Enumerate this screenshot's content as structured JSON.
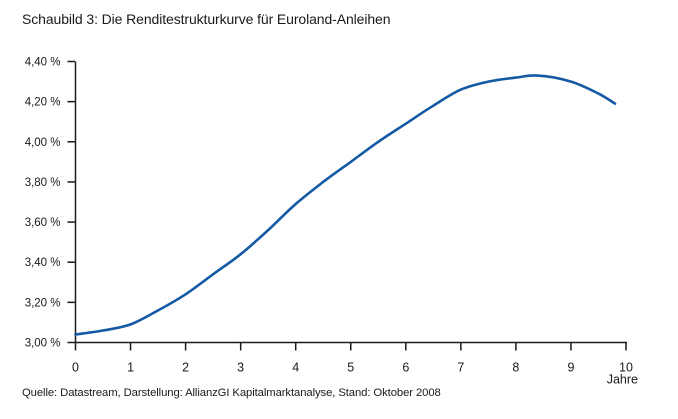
{
  "title": "Schaubild 3: Die Renditestrukturkurve für Euroland-Anleihen",
  "source": "Quelle: Datastream, Darstellung: AllianzGI Kapitalmarktanalyse, Stand: Oktober 2008",
  "colors": {
    "curve": "#1459a4",
    "axis": "#1a1a1a",
    "text": "#1a1a1a",
    "background": "#ffffff"
  },
  "chart_data": {
    "type": "line",
    "title": "Schaubild 3: Die Renditestrukturkurve für Euroland-Anleihen",
    "xlabel": "Jahre",
    "ylabel": "",
    "xlim": [
      0,
      10
    ],
    "ylim": [
      3.0,
      4.4
    ],
    "grid": false,
    "legend": "none",
    "y_unit": "%",
    "x_ticks": {
      "values": [
        0,
        1,
        2,
        3,
        4,
        5,
        6,
        7,
        8,
        9,
        10
      ],
      "labels": [
        "0",
        "1",
        "2",
        "3",
        "4",
        "5",
        "6",
        "7",
        "8",
        "9",
        "10"
      ]
    },
    "y_ticks": {
      "values": [
        3.0,
        3.2,
        3.4,
        3.6,
        3.8,
        4.0,
        4.2,
        4.4
      ],
      "labels": [
        "3,00 %",
        "3,20 %",
        "3,40 %",
        "3,60 %",
        "3,80 %",
        "4,00 %",
        "4,20 %",
        "4,40 %"
      ]
    },
    "series": [
      {
        "name": "Renditestrukturkurve für Euroland-Anleihen",
        "x": [
          0,
          0.5,
          1,
          1.5,
          2,
          2.5,
          3,
          3.5,
          4,
          4.5,
          5,
          5.5,
          6,
          6.5,
          7,
          7.5,
          8,
          8.4,
          9,
          9.5,
          9.8
        ],
        "y": [
          3.04,
          3.06,
          3.09,
          3.16,
          3.24,
          3.34,
          3.44,
          3.56,
          3.69,
          3.8,
          3.9,
          4.0,
          4.09,
          4.18,
          4.26,
          4.3,
          4.32,
          4.33,
          4.3,
          4.24,
          4.19
        ]
      }
    ]
  }
}
